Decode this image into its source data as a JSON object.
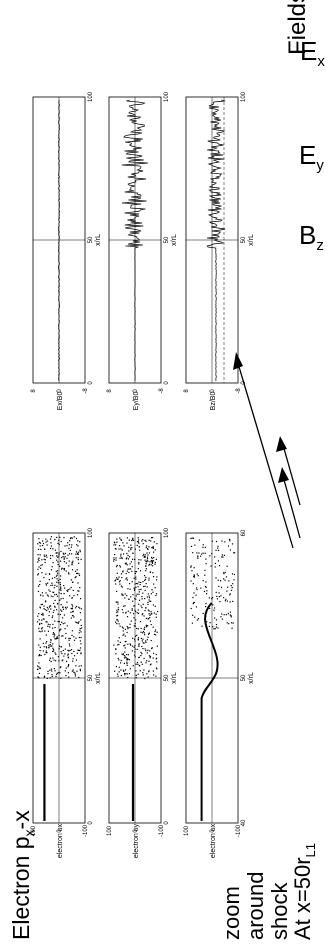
{
  "fields_heading": "Fields",
  "fields": [
    {
      "base": "E",
      "sub": "x"
    },
    {
      "base": "E",
      "sub": "y"
    },
    {
      "base": "B",
      "sub": "z"
    }
  ],
  "left_caption": {
    "title_base": "Electron p",
    "title_sub": "x",
    "title_tail": "-x",
    "zoom_lines": [
      "zoom",
      "around",
      "shock"
    ],
    "position_base": "At x=50r",
    "position_sub": "L1"
  },
  "panels": {
    "electron": [
      {
        "ylabel": "electron u",
        "ysub": "x",
        "yticks": [
          "100",
          "0",
          "-100"
        ],
        "xticks": [
          "0",
          "50",
          "100"
        ],
        "xlabel": "x/r",
        "xsub": "L"
      },
      {
        "ylabel": "electron u",
        "ysub": "y",
        "yticks": [
          "100",
          "0",
          "-100"
        ],
        "xticks": [
          "0",
          "50",
          "100"
        ],
        "xlabel": "x/r",
        "xsub": "L"
      },
      {
        "ylabel": "electron u",
        "ysub": "x",
        "yticks": [
          "100",
          "0",
          "-100"
        ],
        "xticks": [
          "40",
          "50",
          "60"
        ],
        "xlabel": "x/r",
        "xsub": "L"
      }
    ],
    "fields": [
      {
        "ylabel": "E",
        "ysub": "x",
        "yden": "/B",
        "ydensub": "0",
        "yticks": [
          "8",
          "0",
          "-8"
        ],
        "xticks": [
          "0",
          "50",
          "100"
        ],
        "xlabel": "x/r",
        "xsub": "L"
      },
      {
        "ylabel": "E",
        "ysub": "y",
        "yden": "/B",
        "ydensub": "0",
        "yticks": [
          "8",
          "0",
          "-8"
        ],
        "xticks": [
          "0",
          "50",
          "100"
        ],
        "xlabel": "x/r",
        "xsub": "L"
      },
      {
        "ylabel": "B",
        "ysub": "z",
        "yden": "/B",
        "ydensub": "0",
        "yticks": [
          "8",
          "0",
          "-8"
        ],
        "xticks": [
          "0",
          "50",
          "100"
        ],
        "xlabel": "x/r",
        "xsub": "L"
      }
    ]
  },
  "colors": {
    "ink": "#000000",
    "paper": "#ffffff"
  }
}
